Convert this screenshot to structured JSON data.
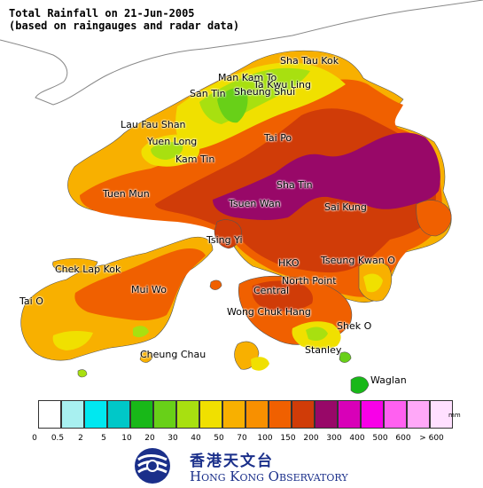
{
  "title": {
    "line1": "Total Rainfall on 21-Jun-2005",
    "line2": "(based on raingauges and radar data)"
  },
  "places": [
    {
      "id": "sha-tau-kok",
      "name": "Sha Tau Kok"
    },
    {
      "id": "man-kam-to",
      "name": "Man Kam To"
    },
    {
      "id": "ta-kwu-ling",
      "name": "Ta Kwu Ling"
    },
    {
      "id": "san-tin",
      "name": "San Tin"
    },
    {
      "id": "sheung-shui",
      "name": "Sheung Shui"
    },
    {
      "id": "lau-fau-shan",
      "name": "Lau Fau Shan"
    },
    {
      "id": "yuen-long",
      "name": "Yuen Long"
    },
    {
      "id": "tai-po",
      "name": "Tai Po"
    },
    {
      "id": "kam-tin",
      "name": "Kam Tin"
    },
    {
      "id": "tuen-mun",
      "name": "Tuen Mun"
    },
    {
      "id": "sha-tin",
      "name": "Sha Tin"
    },
    {
      "id": "tsuen-wan",
      "name": "Tsuen Wan"
    },
    {
      "id": "sai-kung",
      "name": "Sai Kung"
    },
    {
      "id": "tsing-yi",
      "name": "Tsing Yi"
    },
    {
      "id": "chek-lap-kok",
      "name": "Chek Lap Kok"
    },
    {
      "id": "hko",
      "name": "HKO"
    },
    {
      "id": "tseung-kwan-o",
      "name": "Tseung Kwan O"
    },
    {
      "id": "north-point",
      "name": "North Point"
    },
    {
      "id": "mui-wo",
      "name": "Mui Wo"
    },
    {
      "id": "central",
      "name": "Central"
    },
    {
      "id": "tai-o",
      "name": "Tai O"
    },
    {
      "id": "wong-chuk-hang",
      "name": "Wong Chuk Hang"
    },
    {
      "id": "shek-o",
      "name": "Shek O"
    },
    {
      "id": "stanley",
      "name": "Stanley"
    },
    {
      "id": "cheung-chau",
      "name": "Cheung Chau"
    },
    {
      "id": "waglan",
      "name": "Waglan"
    }
  ],
  "legend": {
    "unit": "mm",
    "ticks": [
      "0",
      "0.5",
      "2",
      "5",
      "10",
      "20",
      "30",
      "40",
      "50",
      "70",
      "100",
      "150",
      "200",
      "300",
      "400",
      "500",
      "600",
      "> 600"
    ],
    "colors": [
      "#ffffff",
      "#a8f0f0",
      "#00e8f0",
      "#00c8c8",
      "#18b818",
      "#68d018",
      "#a8e010",
      "#f0e000",
      "#f8b000",
      "#f89000",
      "#f06000",
      "#d03c08",
      "#980868",
      "#d800b8",
      "#f800e8",
      "#ff60f0",
      "#ffa8f8",
      "#ffe0ff"
    ]
  },
  "logo": {
    "chinese": "香港天文台",
    "english": "Hong Kong Observatory"
  }
}
